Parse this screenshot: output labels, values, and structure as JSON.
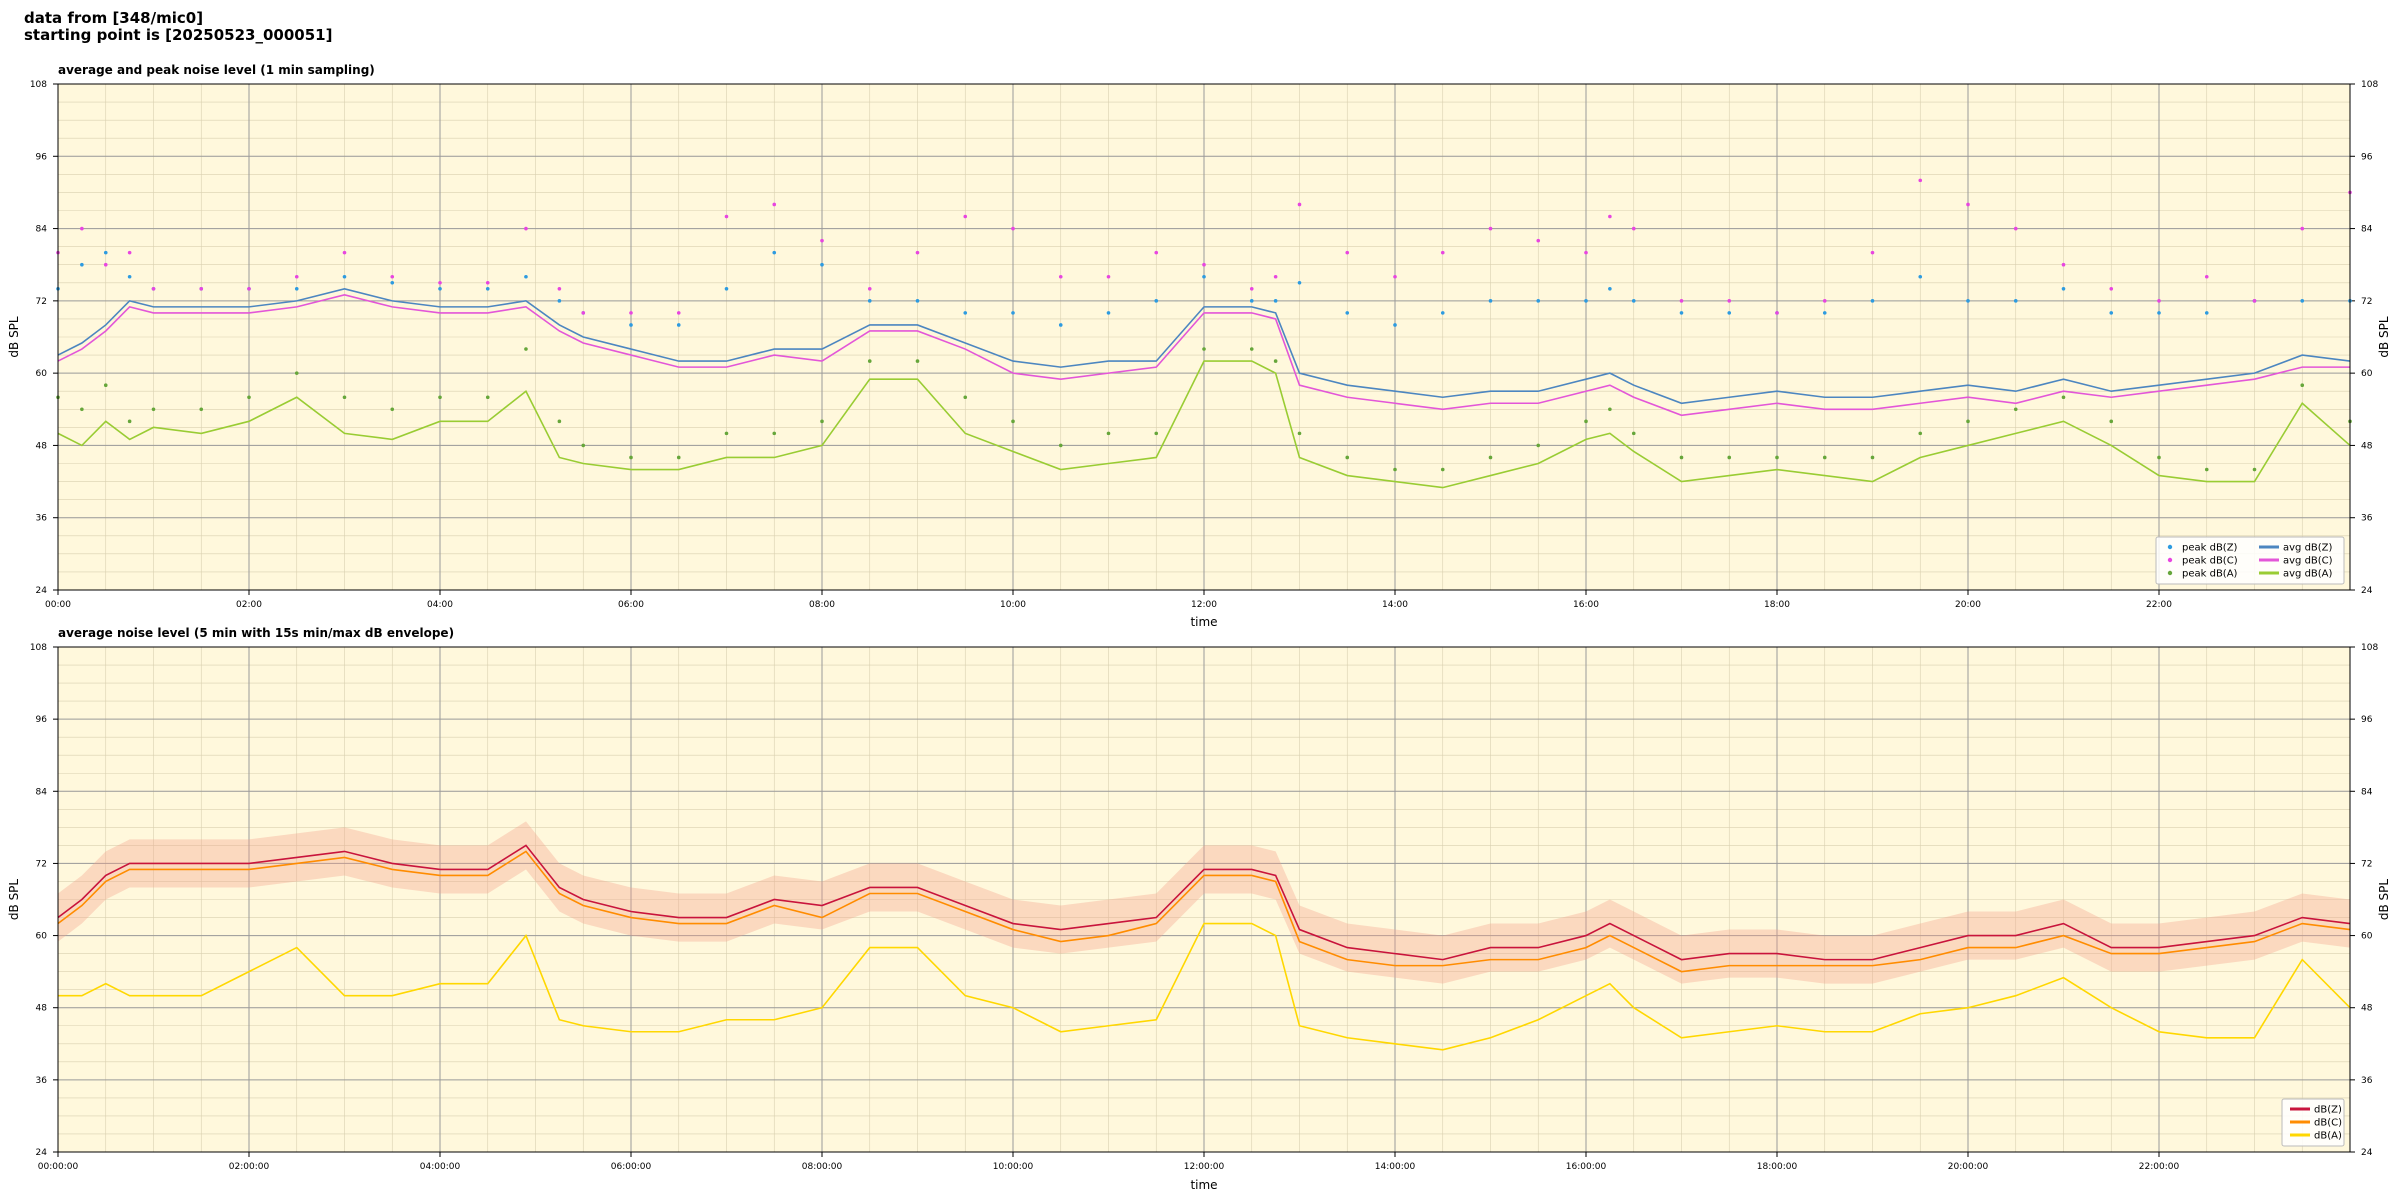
{
  "header": {
    "line1": "data from [348/mic0]",
    "line2": "starting point is [20250523_000051]"
  },
  "chart_data": [
    {
      "type": "line",
      "title": "average and peak noise level (1 min sampling)",
      "xlabel": "time",
      "ylabel": "dB SPL",
      "xlim": [
        0,
        24
      ],
      "ylim": [
        24,
        108
      ],
      "yticks": [
        "24",
        "36",
        "48",
        "60",
        "72",
        "84",
        "96",
        "108"
      ],
      "xticks": [
        "00:00",
        "02:00",
        "04:00",
        "06:00",
        "08:00",
        "10:00",
        "12:00",
        "14:00",
        "16:00",
        "18:00",
        "20:00",
        "22:00"
      ],
      "grid": true,
      "legend_position": "bottom-right",
      "hours": [
        0,
        0.25,
        0.5,
        0.75,
        1,
        1.5,
        2,
        2.5,
        3,
        3.5,
        4,
        4.5,
        4.9,
        5.25,
        5.5,
        6,
        6.5,
        7,
        7.5,
        8,
        8.5,
        9,
        9.5,
        10,
        10.5,
        11,
        11.5,
        12,
        12.5,
        12.75,
        13,
        13.5,
        14,
        14.5,
        15,
        15.5,
        16,
        16.25,
        16.5,
        17,
        17.5,
        18,
        18.5,
        19,
        19.5,
        20,
        20.5,
        21,
        21.5,
        22,
        22.5,
        23,
        23.5,
        24
      ],
      "series": [
        {
          "name": "avg dB(Z)",
          "kind": "line",
          "color": "#4c86c0",
          "values": [
            63,
            65,
            68,
            72,
            71,
            71,
            71,
            72,
            74,
            72,
            71,
            71,
            72,
            68,
            66,
            64,
            62,
            62,
            64,
            64,
            68,
            68,
            65,
            62,
            61,
            62,
            62,
            71,
            71,
            70,
            60,
            58,
            57,
            56,
            57,
            57,
            59,
            60,
            58,
            55,
            56,
            57,
            56,
            56,
            57,
            58,
            57,
            59,
            57,
            58,
            59,
            60,
            63,
            62
          ]
        },
        {
          "name": "avg dB(C)",
          "kind": "line",
          "color": "#e356d8",
          "values": [
            62,
            64,
            67,
            71,
            70,
            70,
            70,
            71,
            73,
            71,
            70,
            70,
            71,
            67,
            65,
            63,
            61,
            61,
            63,
            62,
            67,
            67,
            64,
            60,
            59,
            60,
            61,
            70,
            70,
            69,
            58,
            56,
            55,
            54,
            55,
            55,
            57,
            58,
            56,
            53,
            54,
            55,
            54,
            54,
            55,
            56,
            55,
            57,
            56,
            57,
            58,
            59,
            61,
            61
          ]
        },
        {
          "name": "avg dB(A)",
          "kind": "line",
          "color": "#99cc33",
          "values": [
            50,
            48,
            52,
            49,
            51,
            50,
            52,
            56,
            50,
            49,
            52,
            52,
            57,
            46,
            45,
            44,
            44,
            46,
            46,
            48,
            59,
            59,
            50,
            47,
            44,
            45,
            46,
            62,
            62,
            60,
            46,
            43,
            42,
            41,
            43,
            45,
            49,
            50,
            47,
            42,
            43,
            44,
            43,
            42,
            46,
            48,
            50,
            52,
            48,
            43,
            42,
            42,
            55,
            48
          ]
        },
        {
          "name": "peak dB(Z)",
          "kind": "scatter",
          "color": "#2d9be0",
          "values": [
            74,
            78,
            80,
            76,
            74,
            74,
            74,
            74,
            76,
            75,
            74,
            74,
            76,
            72,
            70,
            68,
            68,
            74,
            80,
            78,
            72,
            72,
            70,
            70,
            68,
            70,
            72,
            76,
            72,
            72,
            75,
            70,
            68,
            70,
            72,
            72,
            72,
            74,
            72,
            70,
            70,
            70,
            70,
            72,
            76,
            72,
            72,
            74,
            70,
            70,
            70,
            72,
            72,
            72
          ]
        },
        {
          "name": "peak dB(C)",
          "kind": "scatter",
          "color": "#e845e0",
          "values": [
            80,
            84,
            78,
            80,
            74,
            74,
            74,
            76,
            80,
            76,
            75,
            75,
            84,
            74,
            70,
            70,
            70,
            86,
            88,
            82,
            74,
            80,
            86,
            84,
            76,
            76,
            80,
            78,
            74,
            76,
            88,
            80,
            76,
            80,
            84,
            82,
            80,
            86,
            84,
            72,
            72,
            70,
            72,
            80,
            92,
            88,
            84,
            78,
            74,
            72,
            76,
            72,
            84,
            90
          ]
        },
        {
          "name": "peak dB(A)",
          "kind": "scatter",
          "color": "#66a63a",
          "values": [
            56,
            54,
            58,
            52,
            54,
            54,
            56,
            60,
            56,
            54,
            56,
            56,
            64,
            52,
            48,
            46,
            46,
            50,
            50,
            52,
            62,
            62,
            56,
            52,
            48,
            50,
            50,
            64,
            64,
            62,
            50,
            46,
            44,
            44,
            46,
            48,
            52,
            54,
            50,
            46,
            46,
            46,
            46,
            46,
            50,
            52,
            54,
            56,
            52,
            46,
            44,
            44,
            58,
            52
          ]
        }
      ]
    },
    {
      "type": "line",
      "title": "average noise level (5 min with 15s min/max dB envelope)",
      "xlabel": "time",
      "ylabel": "dB SPL",
      "xlim": [
        0,
        24
      ],
      "ylim": [
        24,
        108
      ],
      "yticks": [
        "24",
        "36",
        "48",
        "60",
        "72",
        "84",
        "96",
        "108"
      ],
      "xticks": [
        "00:00:00",
        "02:00:00",
        "04:00:00",
        "06:00:00",
        "08:00:00",
        "10:00:00",
        "12:00:00",
        "14:00:00",
        "16:00:00",
        "18:00:00",
        "20:00:00",
        "22:00:00"
      ],
      "grid": true,
      "legend_position": "bottom-right",
      "hours": [
        0,
        0.25,
        0.5,
        0.75,
        1,
        1.5,
        2,
        2.5,
        3,
        3.5,
        4,
        4.5,
        4.9,
        5.25,
        5.5,
        6,
        6.5,
        7,
        7.5,
        8,
        8.5,
        9,
        9.5,
        10,
        10.5,
        11,
        11.5,
        12,
        12.5,
        12.75,
        13,
        13.5,
        14,
        14.5,
        15,
        15.5,
        16,
        16.25,
        16.5,
        17,
        17.5,
        18,
        18.5,
        19,
        19.5,
        20,
        20.5,
        21,
        21.5,
        22,
        22.5,
        23,
        23.5,
        24
      ],
      "series": [
        {
          "name": "dB(Z)",
          "color": "#c8143c",
          "values": [
            63,
            66,
            70,
            72,
            72,
            72,
            72,
            73,
            74,
            72,
            71,
            71,
            75,
            68,
            66,
            64,
            63,
            63,
            66,
            65,
            68,
            68,
            65,
            62,
            61,
            62,
            63,
            71,
            71,
            70,
            61,
            58,
            57,
            56,
            58,
            58,
            60,
            62,
            60,
            56,
            57,
            57,
            56,
            56,
            58,
            60,
            60,
            62,
            58,
            58,
            59,
            60,
            63,
            62
          ]
        },
        {
          "name": "dB(C)",
          "color": "#ff8c00",
          "values": [
            62,
            65,
            69,
            71,
            71,
            71,
            71,
            72,
            73,
            71,
            70,
            70,
            74,
            67,
            65,
            63,
            62,
            62,
            65,
            63,
            67,
            67,
            64,
            61,
            59,
            60,
            62,
            70,
            70,
            69,
            59,
            56,
            55,
            55,
            56,
            56,
            58,
            60,
            58,
            54,
            55,
            55,
            55,
            55,
            56,
            58,
            58,
            60,
            57,
            57,
            58,
            59,
            62,
            61
          ]
        },
        {
          "name": "dB(A)",
          "color": "#ffd700",
          "values": [
            50,
            50,
            52,
            50,
            50,
            50,
            54,
            58,
            50,
            50,
            52,
            52,
            60,
            46,
            45,
            44,
            44,
            46,
            46,
            48,
            58,
            58,
            50,
            48,
            44,
            45,
            46,
            62,
            62,
            60,
            45,
            43,
            42,
            41,
            43,
            46,
            50,
            52,
            48,
            43,
            44,
            45,
            44,
            44,
            47,
            48,
            50,
            53,
            48,
            44,
            43,
            43,
            56,
            48
          ]
        }
      ]
    }
  ]
}
